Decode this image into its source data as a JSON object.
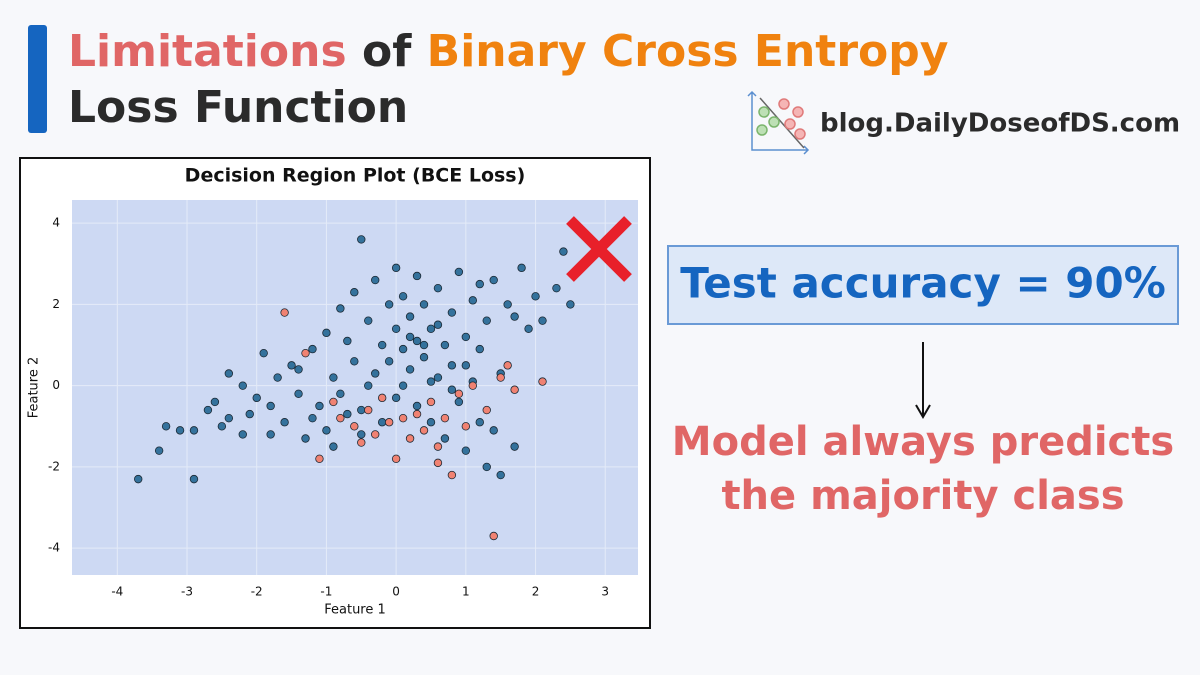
{
  "header": {
    "title_parts": [
      "Limitations",
      "of",
      "Binary Cross Entropy"
    ],
    "title_line2": "Loss Function",
    "brand": "blog.DailyDoseofDS.com"
  },
  "callout": {
    "accuracy": "Test accuracy = 90%",
    "conclusion_lines": [
      "Model always predicts",
      "the majority class"
    ]
  },
  "chart_data": {
    "type": "scatter",
    "title": "Decision Region Plot (BCE Loss)",
    "x_label": "Feature 1",
    "y_label": "Feature 2",
    "xlim": [
      -4.65,
      3.47
    ],
    "ylim": [
      -4.66,
      4.57
    ],
    "xticks": [
      -4,
      -3,
      -2,
      -1,
      0,
      1,
      2,
      3
    ],
    "yticks": [
      -4,
      -2,
      0,
      2,
      4
    ],
    "grid": true,
    "background": "#cdd9f3",
    "series": [
      {
        "color": "#34729c",
        "x": [
          -3.7,
          -2.9,
          -3.4,
          -3.3,
          -3.1,
          -2.9,
          -2.7,
          -2.6,
          -2.4,
          -2.4,
          -2.2,
          -2.1,
          -2.0,
          -1.9,
          -1.8,
          -1.7,
          -1.6,
          -1.5,
          -1.4,
          -1.3,
          -1.2,
          -1.1,
          -1.0,
          -1.0,
          -0.9,
          -0.8,
          -0.8,
          -0.7,
          -0.6,
          -0.6,
          -0.5,
          -0.5,
          -0.4,
          -0.3,
          -0.3,
          -0.2,
          -0.2,
          -0.1,
          -0.1,
          0.0,
          0.0,
          0.0,
          0.1,
          0.1,
          0.2,
          0.2,
          0.3,
          0.3,
          0.4,
          0.4,
          0.5,
          0.5,
          0.6,
          0.6,
          0.7,
          0.7,
          0.8,
          0.8,
          0.9,
          0.9,
          1.0,
          1.0,
          1.1,
          1.1,
          1.2,
          1.2,
          1.3,
          1.3,
          1.4,
          1.4,
          1.5,
          1.5,
          1.6,
          1.7,
          1.7,
          1.8,
          1.9,
          2.0,
          2.1,
          2.3,
          2.5,
          2.4,
          0.2,
          0.4,
          0.6,
          0.1,
          -0.4,
          0.8,
          1.0,
          -1.2,
          -1.8,
          -2.5,
          -0.9,
          -0.5,
          0.3,
          1.2,
          -1.4,
          -2.2,
          -0.7,
          0.5
        ],
        "values": [
          -2.3,
          -2.3,
          -1.6,
          -1.0,
          -1.1,
          -1.1,
          -0.6,
          -0.4,
          -0.8,
          0.3,
          -1.2,
          -0.7,
          -0.3,
          0.8,
          -1.2,
          0.2,
          -0.9,
          0.5,
          -0.2,
          -1.3,
          0.9,
          -0.5,
          1.3,
          -1.1,
          0.2,
          1.9,
          -0.2,
          1.1,
          0.6,
          2.3,
          3.6,
          -0.6,
          1.6,
          0.3,
          2.6,
          1.0,
          -0.9,
          2.0,
          0.6,
          2.9,
          1.4,
          -0.3,
          0.9,
          2.2,
          0.4,
          1.7,
          1.1,
          -0.5,
          2.0,
          0.7,
          1.4,
          -0.9,
          2.4,
          0.2,
          1.0,
          -1.3,
          1.8,
          0.5,
          2.8,
          -0.4,
          1.2,
          -1.6,
          0.1,
          2.1,
          -0.9,
          0.9,
          1.6,
          -2.0,
          2.6,
          -1.1,
          0.3,
          -2.2,
          2.0,
          1.7,
          -1.5,
          2.9,
          1.4,
          2.2,
          1.6,
          2.4,
          2.0,
          3.3,
          1.2,
          1.0,
          1.5,
          0.0,
          0.0,
          -0.1,
          0.5,
          -0.8,
          -0.5,
          -1.0,
          -1.5,
          -1.2,
          2.7,
          2.5,
          0.4,
          0.0,
          -0.7,
          0.1
        ]
      },
      {
        "color": "#f08272",
        "x": [
          -1.6,
          -1.3,
          -1.1,
          -0.8,
          -0.6,
          -0.5,
          -0.4,
          -0.3,
          -0.2,
          -0.1,
          0.0,
          0.1,
          0.2,
          0.3,
          0.4,
          0.5,
          0.6,
          0.7,
          0.8,
          0.9,
          1.0,
          1.1,
          1.3,
          1.5,
          1.6,
          1.7,
          2.1,
          1.4,
          -0.9,
          0.6
        ],
        "values": [
          1.8,
          0.8,
          -1.8,
          -0.8,
          -1.0,
          -1.4,
          -0.6,
          -1.2,
          -0.3,
          -0.9,
          -1.8,
          -0.8,
          -1.3,
          -0.7,
          -1.1,
          -0.4,
          -1.5,
          -0.8,
          -2.2,
          -0.2,
          -1.0,
          0.0,
          -0.6,
          0.2,
          0.5,
          -0.1,
          0.1,
          -3.7,
          -0.4,
          -1.9
        ]
      }
    ]
  }
}
